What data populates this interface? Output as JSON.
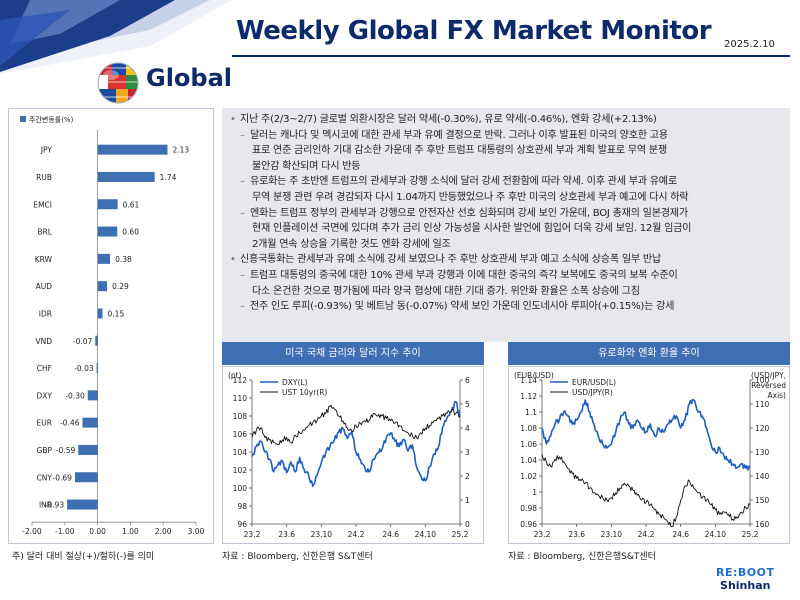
{
  "header": {
    "title": "Weekly Global FX Market Monitor",
    "date": "2025.2.10",
    "section": "Global"
  },
  "commentary": [
    {
      "level": 1,
      "marker": "•",
      "text": "지난 주(2/3~2/7) 글로벌 외환시장은 달러 약세(-0.30%), 유로 약세(-0.46%), 엔화 강세(+2.13%)"
    },
    {
      "level": 2,
      "marker": "–",
      "text": "달러는 캐나다 및 멕시코에 대한 관세 부과 유예 결정으로 반락. 그러나 이후 발표된 미국의 양호한 고용"
    },
    {
      "level": 3,
      "marker": "",
      "text": "표로 연준 금리인하 기대 감소한 가운데 주 후반 트럼프 대통령의 상호관세 부과 계획 발표로 무역 분쟁"
    },
    {
      "level": 3,
      "marker": "",
      "text": "불안감 확산되며 다시 반등"
    },
    {
      "level": 2,
      "marker": "–",
      "text": "유로화는 주 초반엔 트럼프의 관세부과 강행 소식에 달러 강세 전환함에 따라 약세.  이후 관세 부과 유예로"
    },
    {
      "level": 3,
      "marker": "",
      "text": "무역 분쟁 관련 우려 경감되자 다시 1.04까지 반등했었으나 주 후반 미국의 상호관세 부과 예고에 다시 하락"
    },
    {
      "level": 2,
      "marker": "–",
      "text": "엔화는 트럼프 정부의 관세부과 강행으로 안전자산 선호 심화되며 강세 보인 가운데, BOJ 총재의 일본경제가"
    },
    {
      "level": 3,
      "marker": "",
      "text": "현재 인플레이션 국면에 있다며 추가 금리 인상 가능성을 시사한 발언에 힘입어 더욱 강세 보임. 12월 임금이"
    },
    {
      "level": 3,
      "marker": "",
      "text": "2개월 연속 상승을 기록한 것도 엔화 강세에 일조"
    },
    {
      "level": 1,
      "marker": "•",
      "text": "신흥국통화는 관세부과 유예 소식에 강세 보였으나 주 후반 상호관세 부과 예고 소식에 상승폭 일부 반납"
    },
    {
      "level": 2,
      "marker": "–",
      "text": "트럼프 대통령의 중국에 대한 10% 관세 부과 강행과 이에 대한 중국의 즉각 보복에도 중국의 보복 수준이"
    },
    {
      "level": 3,
      "marker": "",
      "text": "다소 온건한 것으로  평가됨에 따라 양국 협상에 대한 기대 증가. 위안화 환율은 소폭 상승에 그침"
    },
    {
      "level": 2,
      "marker": "–",
      "text": "전주 인도 루피(-0.93%) 및 베트남 동(-0.07%) 약세 보인 가운데 인도네시아 루피아(+0.15%)는 강세"
    }
  ],
  "chart_data": [
    {
      "type": "bar",
      "orientation": "horizontal",
      "legend": "주간변동률(%)",
      "categories": [
        "JPY",
        "RUB",
        "EMCI",
        "BRL",
        "KRW",
        "AUD",
        "IDR",
        "VND",
        "CHF",
        "DXY",
        "EUR",
        "GBP",
        "CNY",
        "INR"
      ],
      "values": [
        2.13,
        1.74,
        0.61,
        0.6,
        0.38,
        0.29,
        0.15,
        -0.07,
        -0.03,
        -0.3,
        -0.46,
        -0.59,
        -0.69,
        -0.93
      ],
      "value_labels": [
        "2.13",
        "1.74",
        "0.61",
        "0.60",
        "0.38",
        "0.29",
        "0.15",
        "-0.07",
        "-0.03",
        "-0.30",
        "-0.46",
        "-0.59",
        "-0.69",
        "-0.93"
      ],
      "xlim": [
        -2.0,
        3.0
      ],
      "xticks": [
        "-2.00",
        "-1.00",
        "0.00",
        "1.00",
        "2.00",
        "3.00"
      ],
      "color": "#3e6fb3",
      "footnote": "주) 달러 대비 절상(+)/절하(-)를 의미"
    },
    {
      "type": "line",
      "title": "미국 국채 금리와 달러 지수 추이",
      "left_axis_label": "(pt)",
      "left_ylim": [
        96,
        112
      ],
      "left_ticks": [
        "96",
        "98",
        "100",
        "102",
        "104",
        "106",
        "108",
        "110",
        "112"
      ],
      "right_ylim": [
        0,
        6
      ],
      "right_ticks": [
        "0",
        "1",
        "2",
        "3",
        "4",
        "5",
        "6"
      ],
      "x_ticks": [
        "23.2",
        "23.6",
        "23.10",
        "24.2",
        "24.6",
        "24.10",
        "25.2"
      ],
      "x_range": [
        0,
        24
      ],
      "series": [
        {
          "name": "DXY(L)",
          "axis": "left",
          "color": "#1f5fbf",
          "x": [
            0,
            0.5,
            1,
            1.5,
            2,
            2.5,
            3,
            3.5,
            4,
            4.5,
            5,
            5.5,
            6,
            6.5,
            7,
            7.5,
            8,
            8.5,
            9,
            9.5,
            10,
            10.5,
            11,
            11.5,
            12,
            12.5,
            13,
            13.5,
            14,
            14.5,
            15,
            15.5,
            16,
            16.5,
            17,
            17.5,
            18,
            18.5,
            19,
            19.5,
            20,
            20.5,
            21,
            21.5,
            22,
            22.5,
            23,
            23.5,
            24
          ],
          "y": [
            103.5,
            104.6,
            105.2,
            104.0,
            103.2,
            101.8,
            102.6,
            103.0,
            101.7,
            102.9,
            101.8,
            103.4,
            102.1,
            101.6,
            100.2,
            101.4,
            102.8,
            103.9,
            104.6,
            105.3,
            106.2,
            106.6,
            105.5,
            106.3,
            104.0,
            103.2,
            102.3,
            101.8,
            103.2,
            103.9,
            104.3,
            105.6,
            106.1,
            105.2,
            104.6,
            105.4,
            104.1,
            104.8,
            102.3,
            101.3,
            100.8,
            102.4,
            103.8,
            104.5,
            106.8,
            107.8,
            108.5,
            109.6,
            108.0
          ]
        },
        {
          "name": "UST 10yr(R)",
          "axis": "right",
          "color": "#111111",
          "x": [
            0,
            0.5,
            1,
            1.5,
            2,
            2.5,
            3,
            3.5,
            4,
            4.5,
            5,
            5.5,
            6,
            6.5,
            7,
            7.5,
            8,
            8.5,
            9,
            9.5,
            10,
            10.5,
            11,
            11.5,
            12,
            12.5,
            13,
            13.5,
            14,
            14.5,
            15,
            15.5,
            16,
            16.5,
            17,
            17.5,
            18,
            18.5,
            19,
            19.5,
            20,
            20.5,
            21,
            21.5,
            22,
            22.5,
            23,
            23.5,
            24
          ],
          "y": [
            3.6,
            3.9,
            4.0,
            3.6,
            3.5,
            3.4,
            3.3,
            3.5,
            3.6,
            3.4,
            3.7,
            3.8,
            3.9,
            4.1,
            4.2,
            4.3,
            4.5,
            4.6,
            4.9,
            4.8,
            4.5,
            4.3,
            4.0,
            3.9,
            4.1,
            4.2,
            4.3,
            4.3,
            4.6,
            4.5,
            4.5,
            4.4,
            4.3,
            4.2,
            4.1,
            3.9,
            3.8,
            3.7,
            3.6,
            3.8,
            4.0,
            4.1,
            4.3,
            4.4,
            4.5,
            4.6,
            4.7,
            4.6,
            4.5
          ]
        }
      ],
      "source": "자료 : Bloomberg, 신한은행 S&T센터"
    },
    {
      "type": "line",
      "title": "유로화와 엔화 환율 추이",
      "left_axis_label": "(EUR/USD)",
      "right_axis_label": [
        "(USD/JPY,",
        "Reversed",
        "Axis)"
      ],
      "left_ylim": [
        0.96,
        1.14
      ],
      "left_ticks": [
        "0.96",
        "0.98",
        "1",
        "1.02",
        "1.04",
        "1.06",
        "1.08",
        "1.1",
        "1.12",
        "1.14"
      ],
      "right_ylim": [
        100,
        160
      ],
      "right_reversed": true,
      "right_ticks": [
        "100",
        "110",
        "120",
        "130",
        "140",
        "150",
        "160"
      ],
      "x_ticks": [
        "23.2",
        "23.6",
        "23.10",
        "24.2",
        "24.6",
        "24.10",
        "25.2"
      ],
      "x_range": [
        0,
        24
      ],
      "series": [
        {
          "name": "EUR/USD(L)",
          "axis": "left",
          "color": "#1f5fbf",
          "x": [
            0,
            0.5,
            1,
            1.5,
            2,
            2.5,
            3,
            3.5,
            4,
            4.5,
            5,
            5.5,
            6,
            6.5,
            7,
            7.5,
            8,
            8.5,
            9,
            9.5,
            10,
            10.5,
            11,
            11.5,
            12,
            12.5,
            13,
            13.5,
            14,
            14.5,
            15,
            15.5,
            16,
            16.5,
            17,
            17.5,
            18,
            18.5,
            19,
            19.5,
            20,
            20.5,
            21,
            21.5,
            22,
            22.5,
            23,
            23.5,
            24
          ],
          "y": [
            1.08,
            1.06,
            1.07,
            1.085,
            1.09,
            1.1,
            1.095,
            1.085,
            1.09,
            1.1,
            1.115,
            1.1,
            1.085,
            1.07,
            1.06,
            1.055,
            1.06,
            1.075,
            1.09,
            1.1,
            1.085,
            1.08,
            1.09,
            1.08,
            1.075,
            1.085,
            1.07,
            1.08,
            1.075,
            1.085,
            1.09,
            1.095,
            1.08,
            1.09,
            1.11,
            1.115,
            1.1,
            1.095,
            1.08,
            1.06,
            1.05,
            1.055,
            1.045,
            1.04,
            1.035,
            1.03,
            1.035,
            1.03,
            1.03
          ]
        },
        {
          "name": "USD/JPY(R)",
          "axis": "right",
          "color": "#111111",
          "x": [
            0,
            0.5,
            1,
            1.5,
            2,
            2.5,
            3,
            3.5,
            4,
            4.5,
            5,
            5.5,
            6,
            6.5,
            7,
            7.5,
            8,
            8.5,
            9,
            9.5,
            10,
            10.5,
            11,
            11.5,
            12,
            12.5,
            13,
            13.5,
            14,
            14.5,
            15,
            15.5,
            16,
            16.5,
            17,
            17.5,
            18,
            18.5,
            19,
            19.5,
            20,
            20.5,
            21,
            21.5,
            22,
            22.5,
            23,
            23.5,
            24
          ],
          "y": [
            131,
            134,
            136,
            133,
            132,
            134,
            137,
            139,
            141,
            142,
            143,
            145,
            147,
            148,
            149,
            150,
            149,
            147,
            145,
            143,
            144,
            146,
            148,
            150,
            151,
            152,
            154,
            156,
            157,
            159,
            161,
            157,
            150,
            144,
            142,
            145,
            147,
            149,
            150,
            152,
            154,
            156,
            155,
            156,
            158,
            157,
            155,
            153,
            152
          ]
        }
      ],
      "source": "자료 : Bloomberg, 신한은행S&T센터"
    }
  ],
  "logo": {
    "top": "RE:BOOT",
    "bottom": "Shinhan"
  }
}
